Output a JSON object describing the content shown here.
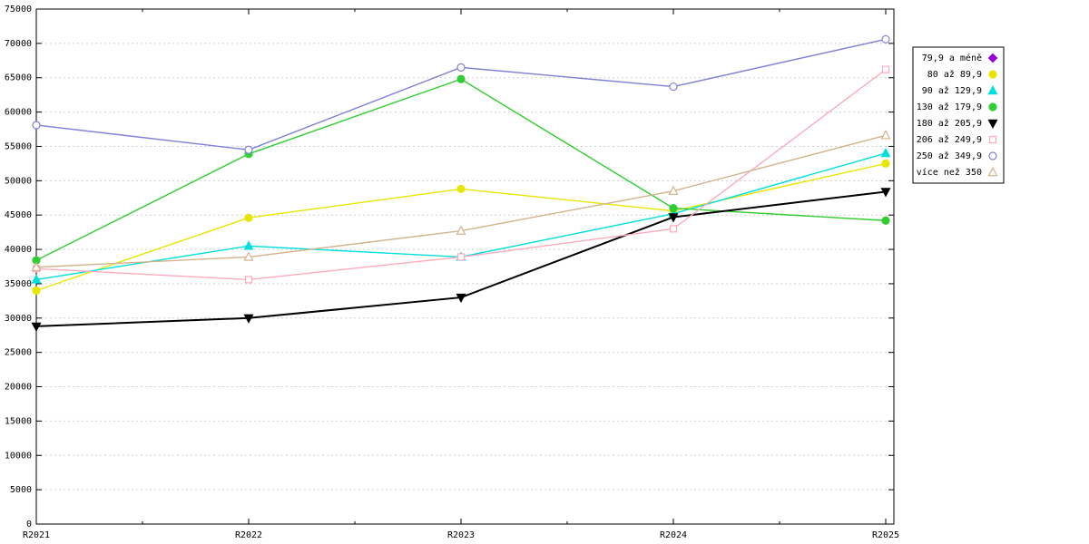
{
  "chart_data": {
    "type": "line",
    "title": "",
    "xlabel": "",
    "ylabel": "",
    "background": "#ffffff",
    "grid": "horizontal-dashed",
    "legend_position": "right",
    "x_categories": [
      "R2021",
      "R2022",
      "R2023",
      "R2024",
      "R2025"
    ],
    "ylim": [
      0,
      75000
    ],
    "yticks": [
      0,
      5000,
      10000,
      15000,
      20000,
      25000,
      30000,
      35000,
      40000,
      45000,
      50000,
      55000,
      60000,
      65000,
      70000,
      75000
    ],
    "series": [
      {
        "name": "79,9 a méně",
        "color": "#9400d3",
        "marker": "diamond",
        "filled": true,
        "values": [
          null,
          null,
          null,
          null,
          null
        ]
      },
      {
        "name": "80 až 89,9",
        "color": "#e6e600",
        "marker": "circle",
        "filled": true,
        "values": [
          34000,
          44600,
          48800,
          45600,
          52500
        ]
      },
      {
        "name": "90 až 129,9",
        "color": "#00dede",
        "marker": "triangle-up",
        "filled": true,
        "values": [
          35600,
          40500,
          38900,
          45200,
          54000
        ]
      },
      {
        "name": "130 až 179,9",
        "color": "#32cd32",
        "marker": "circle",
        "filled": true,
        "values": [
          38400,
          53900,
          64800,
          46000,
          44200
        ]
      },
      {
        "name": "180 až 205,9",
        "color": "#000000",
        "marker": "triangle-down",
        "filled": true,
        "values": [
          28800,
          30000,
          33000,
          44700,
          48400
        ]
      },
      {
        "name": "206 až 249,9",
        "color": "#ffaabc",
        "marker": "square",
        "filled": false,
        "values": [
          37200,
          35600,
          38900,
          43000,
          66200
        ]
      },
      {
        "name": "250 až 349,9",
        "color": "#8080d8",
        "marker": "circle",
        "filled": false,
        "values": [
          58100,
          54500,
          66500,
          63700,
          70600
        ]
      },
      {
        "name": "více než 350",
        "color": "#d2b48c",
        "marker": "triangle-up",
        "filled": false,
        "values": [
          37400,
          38900,
          42700,
          48500,
          56600
        ]
      }
    ]
  }
}
